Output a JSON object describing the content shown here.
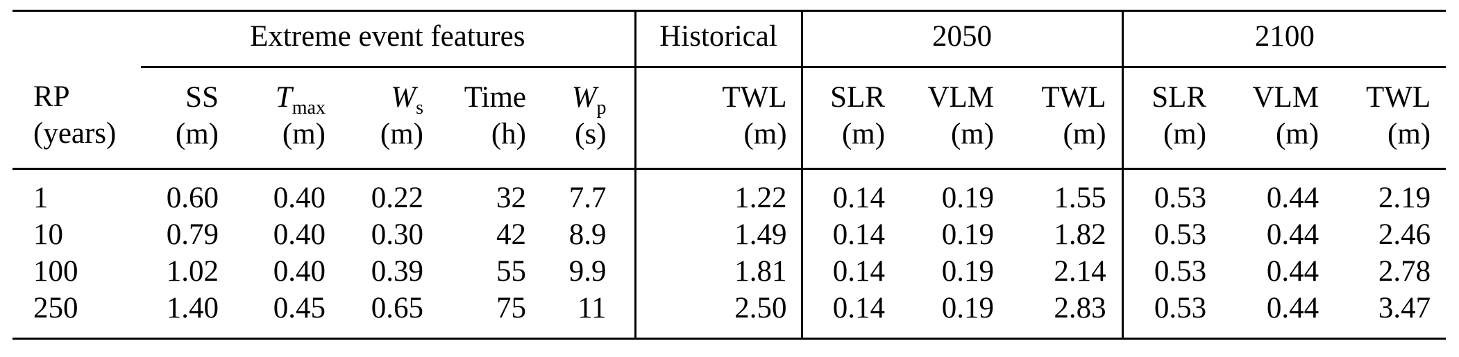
{
  "page": {
    "background": "#ffffff",
    "text_color": "#000000",
    "rule_color": "#000000"
  },
  "table": {
    "groups": [
      {
        "label": "",
        "span": 1
      },
      {
        "label": "Extreme event features",
        "span": 5
      },
      {
        "label": "Historical",
        "span": 1
      },
      {
        "label": "2050",
        "span": 3
      },
      {
        "label": "2100",
        "span": 3
      }
    ],
    "columns": [
      {
        "id": "rp",
        "name": "RP",
        "unit": "(years)"
      },
      {
        "id": "ss",
        "name": "SS",
        "unit": "(m)"
      },
      {
        "id": "tmax",
        "name": "T",
        "sub": "max",
        "italic": true,
        "unit": "(m)"
      },
      {
        "id": "ws",
        "name": "W",
        "sub": "s",
        "italic": true,
        "unit": "(m)"
      },
      {
        "id": "time",
        "name": "Time",
        "unit": "(h)"
      },
      {
        "id": "wp",
        "name": "W",
        "sub": "p",
        "italic": true,
        "unit": "(s)"
      },
      {
        "id": "twl-historical",
        "name": "TWL",
        "unit": "(m)"
      },
      {
        "id": "slr-2050",
        "name": "SLR",
        "unit": "(m)"
      },
      {
        "id": "vlm-2050",
        "name": "VLM",
        "unit": "(m)"
      },
      {
        "id": "twl-2050",
        "name": "TWL",
        "unit": "(m)"
      },
      {
        "id": "slr-2100",
        "name": "SLR",
        "unit": "(m)"
      },
      {
        "id": "vlm-2100",
        "name": "VLM",
        "unit": "(m)"
      },
      {
        "id": "twl-2100",
        "name": "TWL",
        "unit": "(m)"
      }
    ],
    "rows": [
      [
        "1",
        "0.60",
        "0.40",
        "0.22",
        "32",
        "7.7",
        "1.22",
        "0.14",
        "0.19",
        "1.55",
        "0.53",
        "0.44",
        "2.19"
      ],
      [
        "10",
        "0.79",
        "0.40",
        "0.30",
        "42",
        "8.9",
        "1.49",
        "0.14",
        "0.19",
        "1.82",
        "0.53",
        "0.44",
        "2.46"
      ],
      [
        "100",
        "1.02",
        "0.40",
        "0.39",
        "55",
        "9.9",
        "1.81",
        "0.14",
        "0.19",
        "2.14",
        "0.53",
        "0.44",
        "2.78"
      ],
      [
        "250",
        "1.40",
        "0.45",
        "0.65",
        "75",
        "11",
        "2.50",
        "0.14",
        "0.19",
        "2.83",
        "0.53",
        "0.44",
        "3.47"
      ]
    ]
  }
}
